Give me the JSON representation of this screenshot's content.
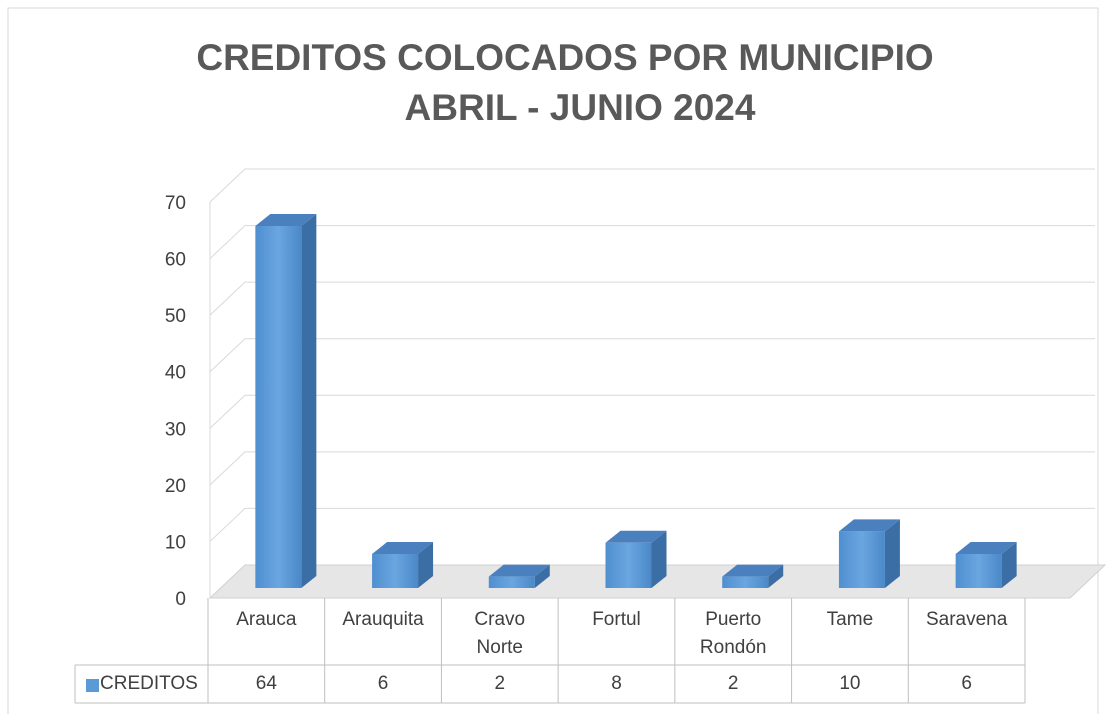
{
  "chart_data": {
    "type": "bar3d",
    "title": "CREDITOS COLOCADOS POR MUNICIPIO",
    "subtitle": "ABRIL - JUNIO 2024",
    "categories": [
      "Arauca",
      "Arauquita",
      "Cravo Norte",
      "Fortul",
      "Puerto Rondón",
      "Tame",
      "Saravena"
    ],
    "series": [
      {
        "name": "CREDITOS",
        "color": "#5b9bd5",
        "values": [
          64,
          6,
          2,
          8,
          2,
          10,
          6
        ]
      }
    ],
    "ylim": [
      0,
      70
    ],
    "yticks": [
      0,
      10,
      20,
      30,
      40,
      50,
      60,
      70
    ],
    "grid": true,
    "data_table": true
  }
}
